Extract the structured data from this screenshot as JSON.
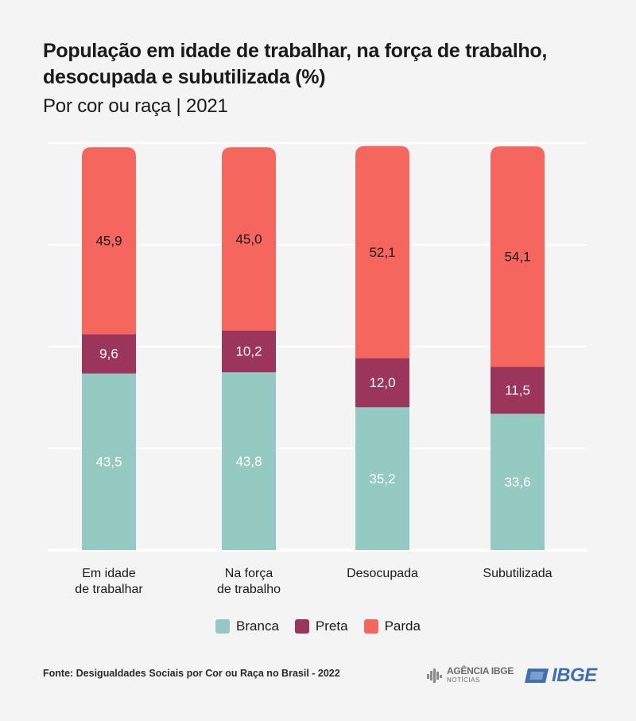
{
  "header": {
    "title": "População em idade de trabalhar, na força de trabalho, desocupada e subutilizada (%)",
    "subtitle": "Por cor ou raça |  2021"
  },
  "colors": {
    "branca": "#94cac1",
    "preta": "#9b355c",
    "parda": "#f4665e"
  },
  "chart_data": {
    "type": "bar",
    "stacked": true,
    "categories": [
      [
        "Em idade",
        "de trabalhar"
      ],
      [
        "Na força",
        "de trabalho"
      ],
      [
        "Desocupada"
      ],
      [
        "Subutilizada"
      ]
    ],
    "series": [
      {
        "name": "Branca",
        "values": [
          43.5,
          43.8,
          35.2,
          33.6
        ],
        "labels": [
          "43,5",
          "43,8",
          "35,2",
          "33,6"
        ],
        "color": "#94cac1",
        "label_color": "#ffffff"
      },
      {
        "name": "Preta",
        "values": [
          9.6,
          10.2,
          12.0,
          11.5
        ],
        "labels": [
          "9,6",
          "10,2",
          "12,0",
          "11,5"
        ],
        "color": "#9b355c",
        "label_color": "#ffffff"
      },
      {
        "name": "Parda",
        "values": [
          45.9,
          45.0,
          52.1,
          54.1
        ],
        "labels": [
          "45,9",
          "45,0",
          "52,1",
          "54,1"
        ],
        "color": "#f4665e",
        "label_color": "#1a1a1a"
      }
    ],
    "ylim": [
      0,
      100
    ],
    "grid": true,
    "legend_position": "bottom"
  },
  "legend": {
    "items": [
      {
        "label": "Branca",
        "color": "#94cac1"
      },
      {
        "label": "Preta",
        "color": "#9b355c"
      },
      {
        "label": "Parda",
        "color": "#f4665e"
      }
    ]
  },
  "footer": {
    "source": "Fonte: Desigualdades Sociais por Cor ou Raça no Brasil - 2022",
    "agencia_name": "AGÊNCIA IBGE",
    "agencia_sub": "NOTÍCIAS",
    "ibge_logo": "IBGE"
  },
  "icons": {
    "agencia": "agencia-ibge-logo-icon",
    "ibge": "ibge-logo-icon"
  }
}
